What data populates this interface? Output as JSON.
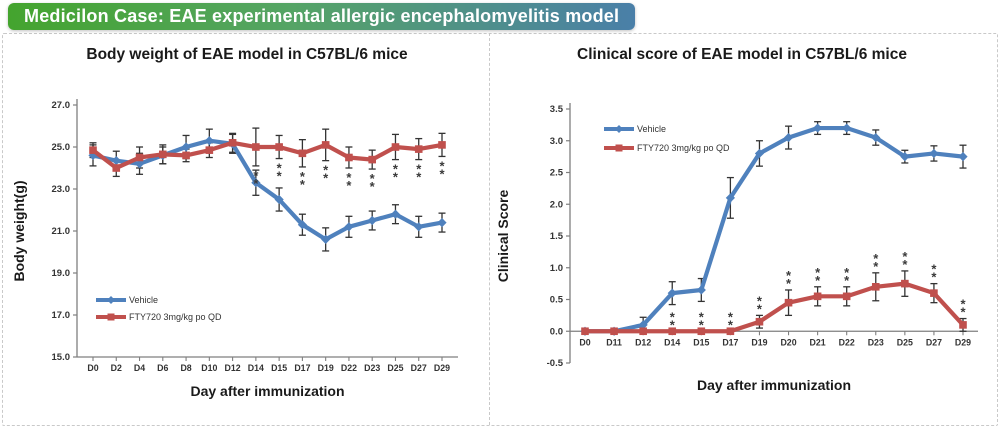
{
  "banner": {
    "text": "Medicilon Case: EAE experimental allergic encephalomyelitis model",
    "gradient_from": "#44a42e",
    "gradient_to": "#4a7fa8"
  },
  "colors": {
    "vehicle": "#4f81bd",
    "fty720": "#c0504d",
    "axis": "#7f7f7f",
    "error_bar": "#333333",
    "tick_text": "#333333",
    "sig_marker": "#3a3a3a",
    "dashed_border": "#c9c9c9"
  },
  "chart_data": [
    {
      "type": "line",
      "title": "Body weight of EAE model in C57BL/6 mice",
      "xlabel": "Day after immunization",
      "ylabel": "Body weight(g)",
      "ylim": [
        15.0,
        27.0
      ],
      "ytick_step": 2.0,
      "ytick_decimals": 1,
      "x_axis_y": 15.0,
      "grid": false,
      "legend": {
        "position": "bottom-left"
      },
      "categories": [
        "D0",
        "D2",
        "D4",
        "D6",
        "D8",
        "D10",
        "D12",
        "D14",
        "D15",
        "D17",
        "D19",
        "D22",
        "D23",
        "D25",
        "D27",
        "D29"
      ],
      "series": [
        {
          "name": "Vehicle",
          "color": "#4f81bd",
          "marker": "diamond",
          "values": [
            24.6,
            24.35,
            24.2,
            24.6,
            25.0,
            25.3,
            25.15,
            23.3,
            22.5,
            21.3,
            20.6,
            21.2,
            21.5,
            21.8,
            21.2,
            21.4
          ],
          "errors": [
            0.5,
            0.45,
            0.5,
            0.4,
            0.55,
            0.55,
            0.45,
            0.6,
            0.55,
            0.5,
            0.55,
            0.5,
            0.45,
            0.45,
            0.5,
            0.45
          ]
        },
        {
          "name": "FTY720 3mg/kg po QD",
          "color": "#c0504d",
          "marker": "square",
          "values": [
            24.85,
            24.0,
            24.5,
            24.65,
            24.6,
            24.85,
            25.2,
            25.0,
            25.0,
            24.7,
            25.1,
            24.5,
            24.4,
            25.0,
            24.9,
            25.1
          ],
          "errors": [
            0.35,
            0.4,
            0.5,
            0.45,
            0.3,
            0.35,
            0.45,
            0.9,
            0.55,
            0.65,
            0.75,
            0.5,
            0.45,
            0.6,
            0.5,
            0.55
          ]
        }
      ],
      "significance": {
        "symbol": "**",
        "series": 1,
        "side": "below",
        "indices": [
          7,
          8,
          9,
          10,
          11,
          12,
          13,
          14,
          15
        ]
      }
    },
    {
      "type": "line",
      "title": "Clinical score of EAE model in C57BL/6 mice",
      "xlabel": "Day after immunization",
      "ylabel": "Clinical Score",
      "ylim": [
        -0.5,
        3.5
      ],
      "ytick_step": 0.5,
      "ytick_decimals": 1,
      "x_axis_y": 0.0,
      "grid": false,
      "legend": {
        "position": "top-left"
      },
      "categories": [
        "D0",
        "D11",
        "D12",
        "D14",
        "D15",
        "D17",
        "D19",
        "D20",
        "D21",
        "D22",
        "D23",
        "D25",
        "D27",
        "D29"
      ],
      "series": [
        {
          "name": "Vehicle",
          "color": "#4f81bd",
          "marker": "diamond",
          "values": [
            0.0,
            0.0,
            0.1,
            0.6,
            0.65,
            2.1,
            2.8,
            3.05,
            3.2,
            3.2,
            3.05,
            2.75,
            2.8,
            2.75
          ],
          "errors": [
            0.0,
            0.0,
            0.12,
            0.18,
            0.18,
            0.32,
            0.2,
            0.18,
            0.1,
            0.1,
            0.12,
            0.1,
            0.12,
            0.18
          ]
        },
        {
          "name": "FTY720 3mg/kg po QD",
          "color": "#c0504d",
          "marker": "square",
          "values": [
            0.0,
            0.0,
            0.0,
            0.0,
            0.0,
            0.0,
            0.15,
            0.45,
            0.55,
            0.55,
            0.7,
            0.75,
            0.6,
            0.1
          ],
          "errors": [
            0.0,
            0.0,
            0.0,
            0.0,
            0.0,
            0.0,
            0.1,
            0.2,
            0.15,
            0.15,
            0.22,
            0.2,
            0.15,
            0.1
          ]
        }
      ],
      "significance": {
        "symbol": "**",
        "series": 1,
        "side": "above",
        "indices": [
          3,
          4,
          5,
          6,
          7,
          8,
          9,
          10,
          11,
          12,
          13
        ]
      }
    }
  ]
}
